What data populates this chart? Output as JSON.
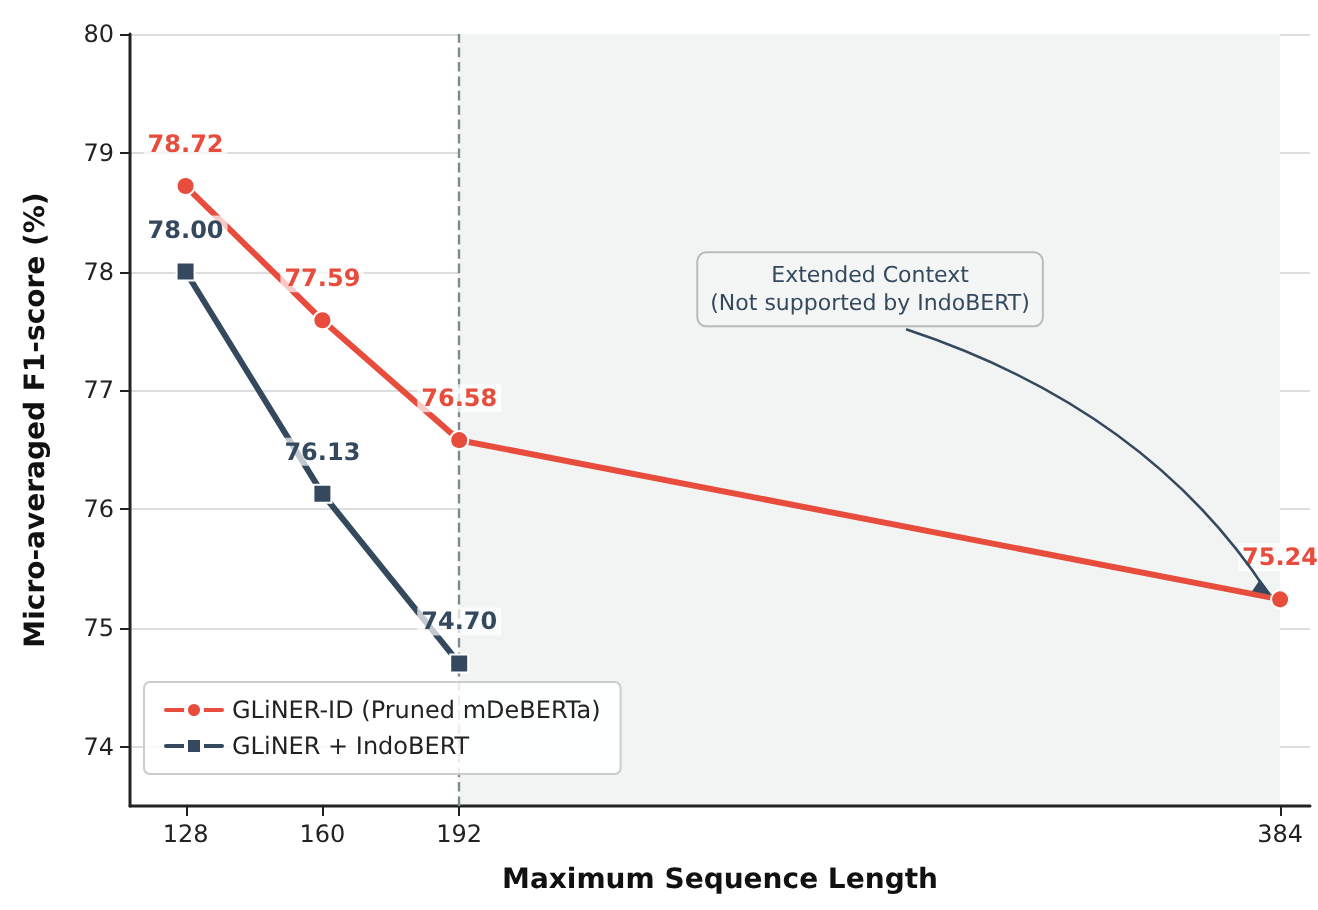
{
  "chart_data": {
    "type": "line",
    "xlabel": "Maximum Sequence Length",
    "ylabel": "Micro-averaged F1-score (%)",
    "series": [
      {
        "name": "GLiNER-ID (Pruned mDeBERTa)",
        "color": "#e74c3c",
        "marker": "circle",
        "x": [
          128,
          160,
          192,
          384
        ],
        "values": [
          78.72,
          77.59,
          76.58,
          75.24
        ],
        "value_labels": [
          "78.72",
          "77.59",
          "76.58",
          "75.24"
        ]
      },
      {
        "name": "GLiNER + IndoBERT",
        "color": "#34495e",
        "marker": "square",
        "x": [
          128,
          160,
          192
        ],
        "values": [
          78.0,
          76.13,
          74.7
        ],
        "value_labels": [
          "78.00",
          "76.13",
          "74.70"
        ]
      }
    ],
    "xlim": [
      115,
      391
    ],
    "xticks": [
      128,
      160,
      192,
      384
    ],
    "ylim": [
      73.5,
      80
    ],
    "yticks": [
      74,
      75,
      76,
      77,
      78,
      79,
      80
    ],
    "grid": "y",
    "legend": "bottom left",
    "line_style": "solid",
    "ref_lines": [
      {
        "axis": "x",
        "value": 192,
        "color": "#7f8c8d",
        "line_style": "dashed"
      }
    ],
    "bands": [
      {
        "axis": "x",
        "from": 192,
        "to": 384,
        "color": "#f2f4f4"
      }
    ],
    "annotations": [
      {
        "text": "Extended Context\n(Not supported by IndoBERT)",
        "x": 384,
        "y": 75.24
      }
    ]
  }
}
